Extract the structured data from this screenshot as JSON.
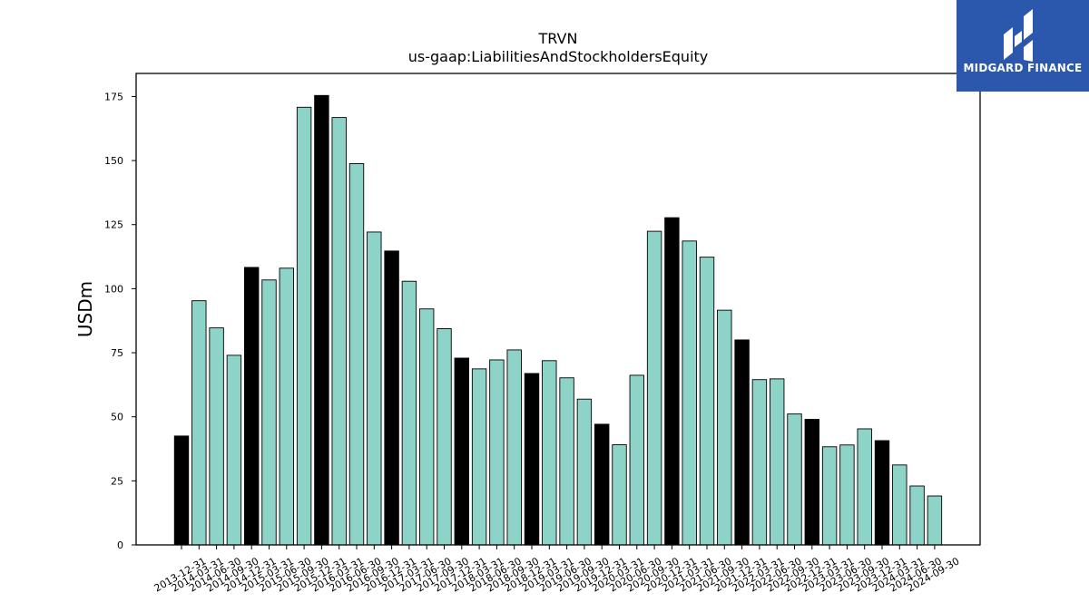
{
  "brand": {
    "name": "MIDGARD FINANCE"
  },
  "colors": {
    "quarter_bar": "#8dd3c7",
    "year_end_bar": "#000000",
    "logo_bg": "#2b57ad"
  },
  "chart_data": {
    "type": "bar",
    "title": "TRVN",
    "subtitle": "us-gaap:LiabilitiesAndStockholdersEquity",
    "ylabel": "USDm",
    "xlabel": "",
    "ylim": [
      0,
      184
    ],
    "yticks": [
      0,
      25,
      50,
      75,
      100,
      125,
      150,
      175
    ],
    "grid": false,
    "categories": [
      "2013-12-31",
      "2014-03-31",
      "2014-06-30",
      "2014-09-30",
      "2014-12-31",
      "2015-03-31",
      "2015-06-30",
      "2015-09-30",
      "2015-12-31",
      "2016-03-31",
      "2016-06-30",
      "2016-09-30",
      "2016-12-31",
      "2017-03-31",
      "2017-06-30",
      "2017-09-30",
      "2017-12-31",
      "2018-03-31",
      "2018-06-30",
      "2018-09-30",
      "2018-12-31",
      "2019-03-31",
      "2019-06-30",
      "2019-09-30",
      "2019-12-31",
      "2020-03-31",
      "2020-06-30",
      "2020-09-30",
      "2020-12-31",
      "2021-03-31",
      "2021-06-30",
      "2021-09-30",
      "2021-12-31",
      "2022-03-31",
      "2022-06-30",
      "2022-09-30",
      "2022-12-31",
      "2023-03-31",
      "2023-06-30",
      "2023-09-30",
      "2023-12-31",
      "2024-03-31",
      "2024-06-30",
      "2024-09-30"
    ],
    "values": [
      42.5,
      95.3,
      84.7,
      74.0,
      108.3,
      103.4,
      108.0,
      170.8,
      175.4,
      166.8,
      148.8,
      122.1,
      114.7,
      102.9,
      92.1,
      84.4,
      72.9,
      68.7,
      72.2,
      76.1,
      66.9,
      71.9,
      65.2,
      56.9,
      47.1,
      39.1,
      66.2,
      122.4,
      127.7,
      118.6,
      112.3,
      91.6,
      80.0,
      64.5,
      64.8,
      51.1,
      49.0,
      38.3,
      39.0,
      45.3,
      40.7,
      31.2,
      23.0,
      19.1
    ],
    "year_end": [
      true,
      false,
      false,
      false,
      true,
      false,
      false,
      false,
      true,
      false,
      false,
      false,
      true,
      false,
      false,
      false,
      true,
      false,
      false,
      false,
      true,
      false,
      false,
      false,
      true,
      false,
      false,
      false,
      true,
      false,
      false,
      false,
      true,
      false,
      false,
      false,
      true,
      false,
      false,
      false,
      true,
      false,
      false,
      false
    ]
  }
}
